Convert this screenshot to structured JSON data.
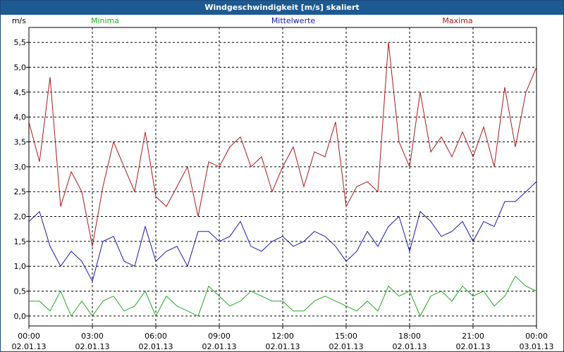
{
  "title": "Windgeschwindigkeit [m/s] skaliert",
  "chart_data": {
    "type": "line",
    "title": "Windgeschwindigkeit [m/s] skaliert",
    "ylabel": "m/s",
    "xlabel": "",
    "ylim": [
      -0.2,
      5.8
    ],
    "xlim": [
      0,
      24
    ],
    "yticks": [
      0.0,
      0.5,
      1.0,
      1.5,
      2.0,
      2.5,
      3.0,
      3.5,
      4.0,
      4.5,
      5.0,
      5.5
    ],
    "ytick_labels": [
      "0,0",
      "0,5",
      "1,0",
      "1,5",
      "2,0",
      "2,5",
      "3,0",
      "3,5",
      "4,0",
      "4,5",
      "5,0",
      "5,5"
    ],
    "xticks": [
      0,
      3,
      6,
      9,
      12,
      15,
      18,
      21,
      24
    ],
    "xtick_labels": [
      {
        "time": "00:00",
        "date": "02.01.13"
      },
      {
        "time": "03:00",
        "date": "02.01.13"
      },
      {
        "time": "06:00",
        "date": "02.01.13"
      },
      {
        "time": "09:00",
        "date": "02.01.13"
      },
      {
        "time": "12:00",
        "date": "02.01.13"
      },
      {
        "time": "15:00",
        "date": "02.01.13"
      },
      {
        "time": "18:00",
        "date": "02.01.13"
      },
      {
        "time": "21:00",
        "date": "02.01.13"
      },
      {
        "time": "00:00",
        "date": "03.01.13"
      }
    ],
    "grid": true,
    "x_hours": [
      0,
      0.5,
      1,
      1.5,
      2,
      2.5,
      3,
      3.5,
      4,
      4.5,
      5,
      5.5,
      6,
      6.5,
      7,
      7.5,
      8,
      8.5,
      9,
      9.5,
      10,
      10.5,
      11,
      11.5,
      12,
      12.5,
      13,
      13.5,
      14,
      14.5,
      15,
      15.5,
      16,
      16.5,
      17,
      17.5,
      18,
      18.5,
      19,
      19.5,
      20,
      20.5,
      21,
      21.5,
      22,
      22.5,
      23,
      23.5,
      24
    ],
    "series": [
      {
        "name": "Minima",
        "color": "#22aa22",
        "values": [
          0.3,
          0.3,
          0.1,
          0.5,
          0.0,
          0.3,
          0.0,
          0.3,
          0.4,
          0.1,
          0.2,
          0.5,
          0.0,
          0.4,
          0.2,
          0.1,
          0.0,
          0.6,
          0.4,
          0.2,
          0.3,
          0.5,
          0.4,
          0.3,
          0.3,
          0.1,
          0.1,
          0.3,
          0.4,
          0.3,
          0.2,
          0.1,
          0.3,
          0.1,
          0.6,
          0.4,
          0.5,
          0.0,
          0.4,
          0.5,
          0.3,
          0.6,
          0.4,
          0.5,
          0.2,
          0.4,
          0.8,
          0.6,
          0.5
        ]
      },
      {
        "name": "Mittelwerte",
        "color": "#1a1aaa",
        "values": [
          1.9,
          2.1,
          1.4,
          1.0,
          1.3,
          1.1,
          0.7,
          1.5,
          1.6,
          1.1,
          1.0,
          1.8,
          1.1,
          1.3,
          1.4,
          1.0,
          1.7,
          1.7,
          1.5,
          1.6,
          1.9,
          1.4,
          1.3,
          1.5,
          1.6,
          1.4,
          1.5,
          1.7,
          1.6,
          1.4,
          1.1,
          1.3,
          1.7,
          1.4,
          1.8,
          2.0,
          1.3,
          2.1,
          1.9,
          1.6,
          1.7,
          1.9,
          1.5,
          1.9,
          1.8,
          2.3,
          2.3,
          2.5,
          2.7
        ]
      },
      {
        "name": "Maxima",
        "color": "#aa1a1a",
        "values": [
          3.9,
          3.1,
          4.8,
          2.2,
          2.9,
          2.5,
          1.4,
          2.6,
          3.5,
          3.0,
          2.5,
          3.7,
          2.4,
          2.2,
          2.6,
          3.0,
          2.0,
          3.1,
          3.0,
          3.4,
          3.6,
          3.0,
          3.2,
          2.5,
          3.0,
          3.4,
          2.6,
          3.3,
          3.2,
          3.9,
          2.2,
          2.6,
          2.7,
          2.5,
          5.5,
          3.5,
          3.0,
          4.5,
          3.3,
          3.6,
          3.2,
          3.7,
          3.2,
          3.8,
          3.0,
          4.6,
          3.4,
          4.5,
          5.0
        ]
      }
    ]
  }
}
